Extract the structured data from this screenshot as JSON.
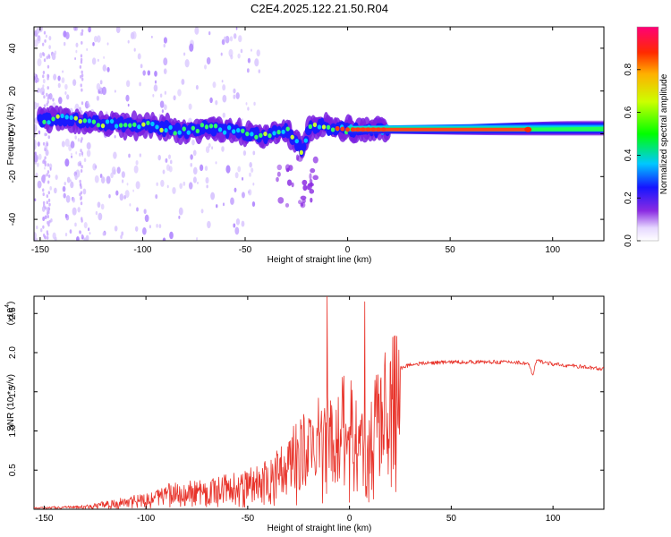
{
  "title": "C2E4.2025.122.21.50.R04",
  "chart_data": [
    {
      "type": "heatmap",
      "xlabel": "Height of straight line (km)",
      "ylabel": "Frequency (Hz)",
      "xlim": [
        -153,
        125
      ],
      "ylim": [
        -50,
        50
      ],
      "xticks": [
        -150,
        -100,
        -50,
        0,
        50,
        100
      ],
      "yticks": [
        -40,
        -20,
        0,
        20,
        40
      ],
      "colorbar": {
        "label": "Normalized spectral amplitude",
        "range": [
          0,
          1
        ],
        "ticks": [
          0.0,
          0.2,
          0.4,
          0.6,
          0.8
        ]
      },
      "ridge": {
        "x": [
          -153,
          -140,
          -130,
          -120,
          -100,
          -80,
          -70,
          -60,
          -50,
          -40,
          -30,
          -22,
          -18,
          -10,
          0,
          20,
          50,
          88,
          125
        ],
        "y": [
          6,
          7,
          6,
          5,
          4,
          1,
          3,
          2,
          0,
          -1,
          2,
          -8,
          4,
          3,
          2,
          2,
          2,
          2,
          2
        ]
      }
    },
    {
      "type": "line",
      "xlabel": "Height of straight line (km)",
      "ylabel": "SNR (10 * v/v)",
      "yscale_label": "(x10",
      "yscale_exp": "4",
      "xlim": [
        -155,
        125
      ],
      "ylim": [
        0,
        2.72
      ],
      "xticks": [
        -150,
        -100,
        -50,
        0,
        50,
        100
      ],
      "yticks": [
        0.5,
        1.0,
        1.5,
        2.0,
        2.5
      ],
      "series": [
        {
          "color": "#e8332a",
          "x": [
            -155,
            -130,
            -120,
            -110,
            -100,
            -90,
            -80,
            -70,
            -60,
            -50,
            -40,
            -35,
            -30,
            -25,
            -20,
            -15,
            -10,
            -8,
            -5,
            0,
            5,
            7,
            8,
            10,
            15,
            20,
            25,
            30,
            40,
            50,
            60,
            80,
            88,
            90,
            92,
            100,
            110,
            125
          ],
          "y": [
            0.02,
            0.04,
            0.08,
            0.12,
            0.18,
            0.25,
            0.28,
            0.3,
            0.35,
            0.4,
            0.5,
            0.6,
            0.75,
            0.9,
            1.0,
            1.1,
            1.2,
            1.0,
            1.3,
            1.4,
            1.0,
            1.2,
            0.5,
            1.1,
            1.5,
            1.7,
            1.8,
            1.85,
            1.87,
            1.88,
            1.88,
            1.88,
            1.86,
            1.7,
            1.9,
            1.85,
            1.83,
            1.79
          ],
          "peaks": [
            {
              "x": -11,
              "y": 2.72
            },
            {
              "x": 7.5,
              "y": 2.65
            }
          ]
        }
      ]
    }
  ]
}
